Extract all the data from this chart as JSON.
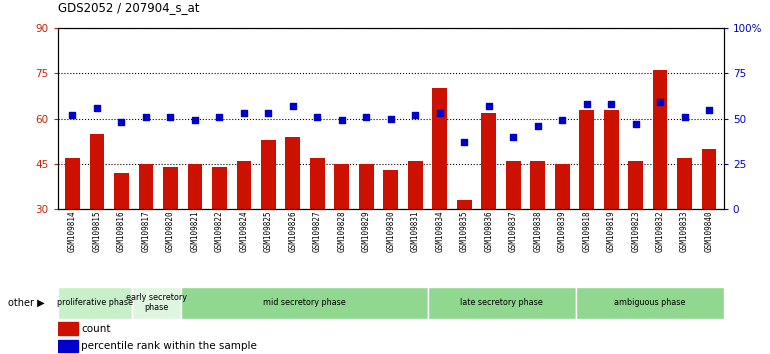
{
  "title": "GDS2052 / 207904_s_at",
  "samples": [
    "GSM109814",
    "GSM109815",
    "GSM109816",
    "GSM109817",
    "GSM109820",
    "GSM109821",
    "GSM109822",
    "GSM109824",
    "GSM109825",
    "GSM109826",
    "GSM109827",
    "GSM109828",
    "GSM109829",
    "GSM109830",
    "GSM109831",
    "GSM109834",
    "GSM109835",
    "GSM109836",
    "GSM109837",
    "GSM109838",
    "GSM109839",
    "GSM109818",
    "GSM109819",
    "GSM109823",
    "GSM109832",
    "GSM109833",
    "GSM109840"
  ],
  "counts": [
    47,
    55,
    42,
    45,
    44,
    45,
    44,
    46,
    53,
    54,
    47,
    45,
    45,
    43,
    46,
    70,
    33,
    62,
    46,
    46,
    45,
    63,
    63,
    46,
    76,
    47,
    50
  ],
  "percentiles": [
    52,
    56,
    48,
    51,
    51,
    49,
    51,
    53,
    53,
    57,
    51,
    49,
    51,
    50,
    52,
    53,
    37,
    57,
    40,
    46,
    49,
    58,
    58,
    47,
    59,
    51,
    55
  ],
  "groups": [
    {
      "label": "proliferative phase",
      "start": 0,
      "end": 3,
      "color": "#c8f0c8"
    },
    {
      "label": "early secretory\nphase",
      "start": 3,
      "end": 5,
      "color": "#dff5df"
    },
    {
      "label": "mid secretory phase",
      "start": 5,
      "end": 15,
      "color": "#90d890"
    },
    {
      "label": "late secretory phase",
      "start": 15,
      "end": 21,
      "color": "#90d890"
    },
    {
      "label": "ambiguous phase",
      "start": 21,
      "end": 27,
      "color": "#90d890"
    }
  ],
  "ylim_left": [
    30,
    90
  ],
  "ylim_right": [
    0,
    100
  ],
  "yticks_left": [
    30,
    45,
    60,
    75,
    90
  ],
  "yticks_right": [
    0,
    25,
    50,
    75,
    100
  ],
  "bar_color": "#cc1100",
  "dot_color": "#0000cc",
  "left_tick_color": "#cc2200",
  "right_tick_color": "#0000cc"
}
